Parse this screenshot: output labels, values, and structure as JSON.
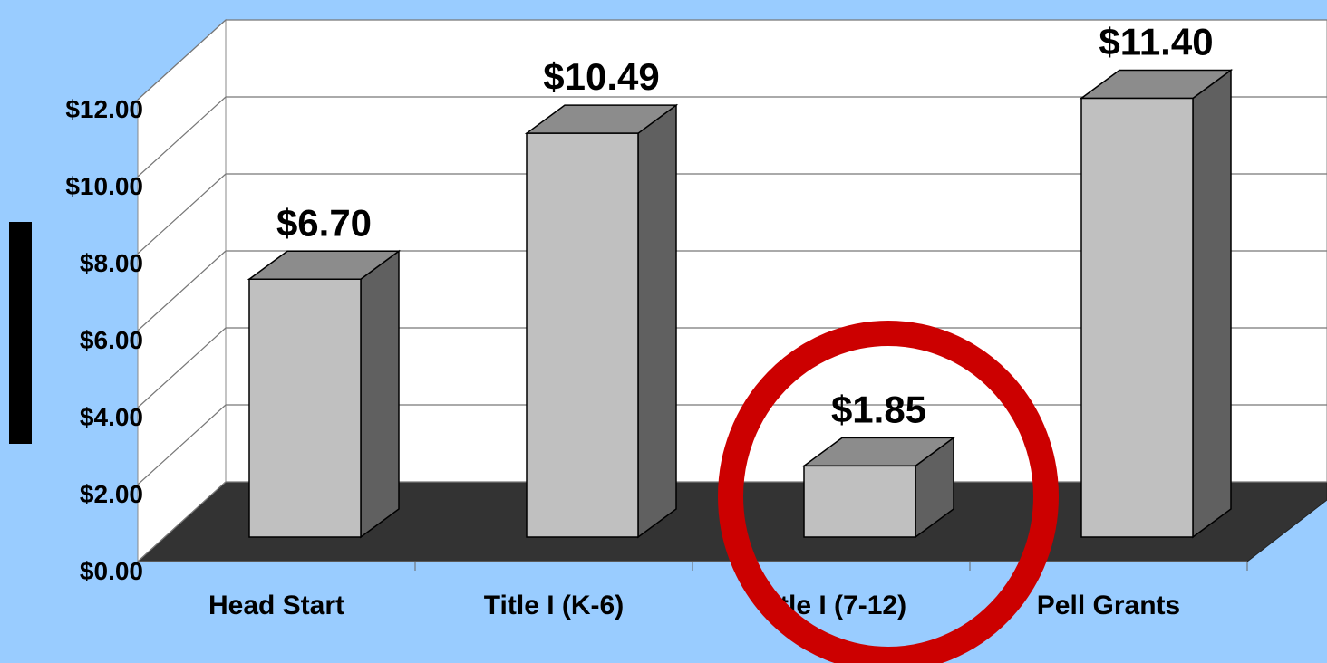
{
  "chart_data": {
    "type": "bar",
    "categories": [
      "Head Start",
      "Title I (K-6)",
      "Title I (7-12)",
      "Pell Grants"
    ],
    "values": [
      6.7,
      10.49,
      1.85,
      11.4
    ],
    "value_labels": [
      "$6.70",
      "$10.49",
      "$1.85",
      "$11.40"
    ],
    "color": "#c0c0c0",
    "ylim": [
      0,
      12
    ],
    "yticks": [
      {
        "value": 0,
        "label": "$0.00"
      },
      {
        "value": 2,
        "label": "$2.00"
      },
      {
        "value": 4,
        "label": "$4.00"
      },
      {
        "value": 6,
        "label": "$6.00"
      },
      {
        "value": 8,
        "label": "$8.00"
      },
      {
        "value": 10,
        "label": "$10.00"
      },
      {
        "value": 12,
        "label": "$12.00"
      }
    ],
    "grid": true
  }
}
